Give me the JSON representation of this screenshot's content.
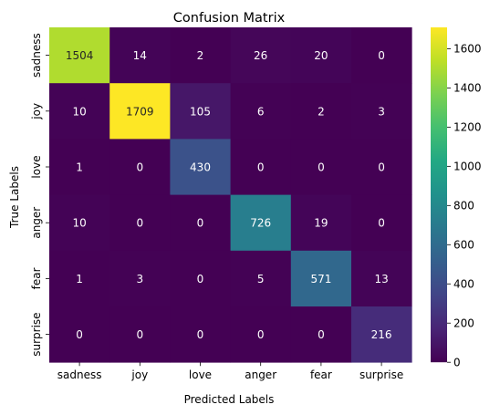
{
  "chart_data": {
    "type": "heatmap",
    "title": "Confusion Matrix",
    "xlabel": "Predicted Labels",
    "ylabel": "True Labels",
    "x_categories": [
      "sadness",
      "joy",
      "love",
      "anger",
      "fear",
      "surprise"
    ],
    "y_categories": [
      "sadness",
      "joy",
      "love",
      "anger",
      "fear",
      "surprise"
    ],
    "values": [
      [
        1504,
        14,
        2,
        26,
        20,
        0
      ],
      [
        10,
        1709,
        105,
        6,
        2,
        3
      ],
      [
        1,
        0,
        430,
        0,
        0,
        0
      ],
      [
        10,
        0,
        0,
        726,
        19,
        0
      ],
      [
        1,
        3,
        0,
        5,
        571,
        13
      ],
      [
        0,
        0,
        0,
        0,
        0,
        216
      ]
    ],
    "colormap": "viridis",
    "color_range": [
      0,
      1709
    ],
    "colorbar_ticks": [
      0,
      200,
      400,
      600,
      800,
      1000,
      1200,
      1400,
      1600
    ],
    "colorbar_tick_labels": [
      "0",
      "200",
      "400",
      "600",
      "800",
      "1000",
      "1200",
      "1400",
      "1600"
    ],
    "annotations": true
  }
}
